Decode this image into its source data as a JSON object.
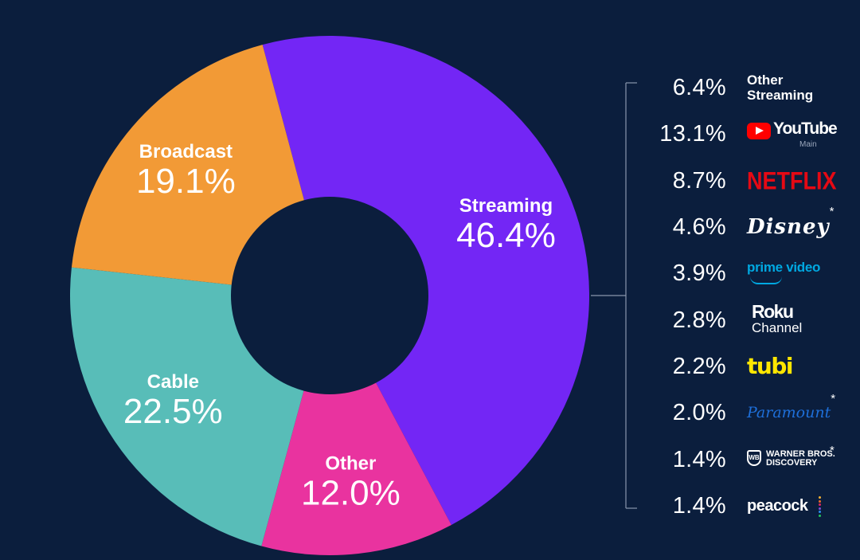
{
  "chart_data": {
    "type": "donut",
    "title": "",
    "slices": [
      {
        "label": "Streaming",
        "value": 46.4,
        "display": "46.4%",
        "color": "#7326f5"
      },
      {
        "label": "Other",
        "value": 12.0,
        "display": "12.0%",
        "color": "#e9339f"
      },
      {
        "label": "Cable",
        "value": 22.5,
        "display": "22.5%",
        "color": "#58bdb8"
      },
      {
        "label": "Broadcast",
        "value": 19.1,
        "display": "19.1%",
        "color": "#f29a36"
      }
    ],
    "breakdown": {
      "parent": "Streaming",
      "items": [
        {
          "label": "Other Streaming",
          "value": 6.4,
          "display": "6.4%"
        },
        {
          "label": "YouTube Main",
          "value": 13.1,
          "display": "13.1%"
        },
        {
          "label": "NETFLIX",
          "value": 8.7,
          "display": "8.7%"
        },
        {
          "label": "Disney*",
          "value": 4.6,
          "display": "4.6%"
        },
        {
          "label": "prime video",
          "value": 3.9,
          "display": "3.9%"
        },
        {
          "label": "Roku Channel",
          "value": 2.8,
          "display": "2.8%"
        },
        {
          "label": "tubi",
          "value": 2.2,
          "display": "2.2%"
        },
        {
          "label": "Paramount*",
          "value": 2.0,
          "display": "2.0%"
        },
        {
          "label": "WARNER BROS. DISCOVERY*",
          "value": 1.4,
          "display": "1.4%"
        },
        {
          "label": "peacock",
          "value": 1.4,
          "display": "1.4%"
        }
      ]
    }
  },
  "brands": {
    "other_streaming": {
      "line1": "Other",
      "line2": "Streaming"
    },
    "youtube": {
      "name": "YouTube",
      "sub": "Main",
      "icon": "youtube-play-icon",
      "color": "#ff0000"
    },
    "netflix": {
      "name": "NETFLIX",
      "color": "#e50914"
    },
    "disney": {
      "name": "Disney",
      "asterisk": "*"
    },
    "prime": {
      "name": "prime video",
      "icon": "amazon-smile-icon",
      "color": "#00a8e1"
    },
    "roku": {
      "line1": "Roku",
      "line2": "Channel"
    },
    "tubi": {
      "name": "tubi",
      "color": "#ffe600"
    },
    "paramount": {
      "name": "Paramount",
      "asterisk": "*",
      "color": "#1e6fd9"
    },
    "wbd": {
      "line1": "WARNER BROS.",
      "line2": "DISCOVERY",
      "shield": "WB",
      "asterisk": "*"
    },
    "peacock": {
      "name": "peacock",
      "dot_colors": [
        "#f9b233",
        "#f26b2a",
        "#e0245e",
        "#7b4fd6",
        "#2d8cf0",
        "#22c55e"
      ]
    }
  }
}
